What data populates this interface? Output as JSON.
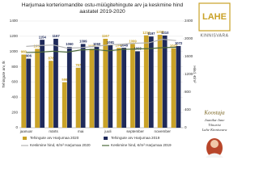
{
  "chart_data": {
    "type": "bar",
    "title": "Harjumaa korteriomandite ostu-müügitehingute arv ja keskmine hind aastatel 2019-2020",
    "categories": [
      "jaanuar",
      null,
      "märts",
      null,
      "mai",
      null,
      "juuli",
      null,
      "september",
      null,
      "november",
      null
    ],
    "y_label": "Tehingute arv, tk",
    "y2_label": "Hind, €/m²",
    "ylim": [
      0,
      1400
    ],
    "yticks": [
      0,
      200,
      400,
      600,
      800,
      1000,
      1200,
      1400
    ],
    "y2lim": [
      0,
      2400
    ],
    "y2ticks": [
      0,
      400,
      800,
      1200,
      1600,
      2000,
      2400
    ],
    "grid": true,
    "series": [
      {
        "name": "Tehingute arv Harjumaa 2020",
        "type": "bar",
        "color": "#c9a227",
        "values": [
          960,
          1034,
          878,
          596,
          787,
          1035,
          1167,
          1047,
          1099,
          1212,
          1219,
          1042
        ]
      },
      {
        "name": "Tehingute arv Harjumaa 2019",
        "type": "bar",
        "color": "#1f2a5a",
        "values": [
          906,
          1154,
          1167,
          1060,
          1099,
          1060,
          1081,
          1048,
          1003,
          1197,
          1210,
          1072
        ]
      },
      {
        "name": "Keskmine hind, €/m² Harjumaa 2020",
        "type": "line",
        "axis": "y2",
        "color": "#b5b5b5",
        "values": [
          1830,
          1850,
          1860,
          1790,
          1800,
          1830,
          1860,
          1880,
          1900,
          1910,
          1990,
          1960
        ]
      },
      {
        "name": "Keskmine hind, €/m² Harjumaa 2019",
        "type": "line",
        "axis": "y2",
        "color": "#4d6b3c",
        "values": [
          1690,
          1700,
          1720,
          1700,
          1750,
          1760,
          1730,
          1760,
          1770,
          1780,
          1800,
          1810
        ]
      }
    ]
  },
  "panel": {
    "logo": "LAHE",
    "brand": "KINNISVARA",
    "author_heading": "Koostaja",
    "author_lines": [
      "Jaanika-Jane",
      "Tõnurist",
      "Lahe Kinnisvara"
    ]
  }
}
